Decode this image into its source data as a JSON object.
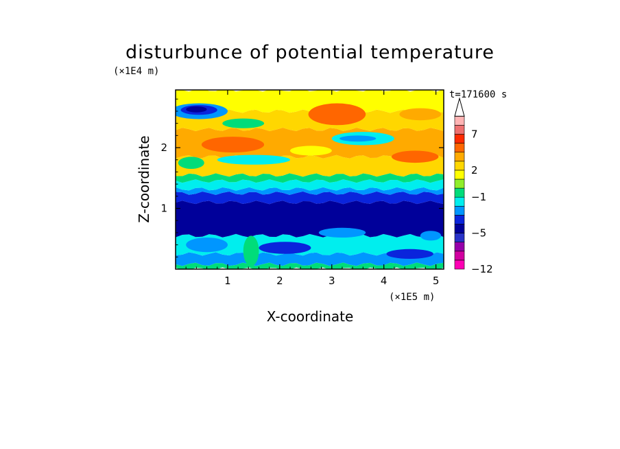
{
  "chart_data": {
    "type": "heatmap",
    "title": "disturbunce of potential temperature",
    "xlabel": "X-coordinate",
    "ylabel": "Z-coordinate",
    "x_unit": "(×1E5 m)",
    "y_unit": "(×1E4 m)",
    "time_label": "t=171600 s",
    "xlim": [
      0,
      5.15
    ],
    "ylim": [
      0,
      2.95
    ],
    "x_ticks": [
      1,
      2,
      3,
      4,
      5
    ],
    "y_ticks": [
      1,
      2
    ],
    "x_tick_labels": [
      "1",
      "2",
      "3",
      "4",
      "5"
    ],
    "y_tick_labels": [
      "1",
      "2"
    ],
    "colorbar": {
      "levels": [
        -12,
        -11,
        -9,
        -7,
        -5,
        -4,
        -3,
        -2,
        -1,
        0,
        1,
        2,
        3,
        4,
        5,
        7,
        9,
        11
      ],
      "colors": [
        "#ff00b4",
        "#d200a0",
        "#9600aa",
        "#2832c8",
        "#00009a",
        "#0a24dc",
        "#0096ff",
        "#00eeee",
        "#00dc7a",
        "#90ee2a",
        "#ffff00",
        "#ffd700",
        "#ffaa00",
        "#ff6600",
        "#ff2a00",
        "#ee7070",
        "#ffb4b4"
      ],
      "extend": "max",
      "tick_values": [
        -12,
        -5,
        -1,
        2,
        7
      ],
      "tick_labels": [
        "−12",
        "−5",
        "−1",
        "2",
        "7"
      ]
    },
    "bands": [
      {
        "z0": 0.0,
        "z1": 0.08,
        "color": "#00dc7a"
      },
      {
        "z0": 0.08,
        "z1": 0.25,
        "color": "#0096ff"
      },
      {
        "z0": 0.25,
        "z1": 0.55,
        "color": "#00eeee"
      },
      {
        "z0": 0.55,
        "z1": 1.1,
        "color": "#00009a"
      },
      {
        "z0": 1.1,
        "z1": 1.25,
        "color": "#0a24dc"
      },
      {
        "z0": 1.25,
        "z1": 1.32,
        "color": "#0096ff"
      },
      {
        "z0": 1.32,
        "z1": 1.45,
        "color": "#00eeee"
      },
      {
        "z0": 1.45,
        "z1": 1.55,
        "color": "#00dc7a"
      },
      {
        "z0": 1.55,
        "z1": 1.85,
        "color": "#ffd700"
      },
      {
        "z0": 1.85,
        "z1": 2.3,
        "color": "#ffaa00"
      },
      {
        "z0": 2.3,
        "z1": 2.6,
        "color": "#ffd700"
      },
      {
        "z0": 2.6,
        "z1": 2.95,
        "color": "#ffff00"
      }
    ],
    "features": [
      {
        "type": "ellipse",
        "x": 0.45,
        "z": 2.6,
        "rx": 0.55,
        "rz": 0.13,
        "color": "#0096ff"
      },
      {
        "type": "ellipse",
        "x": 0.45,
        "z": 2.62,
        "rx": 0.35,
        "rz": 0.08,
        "color": "#0a24dc"
      },
      {
        "type": "ellipse",
        "x": 0.4,
        "z": 2.63,
        "rx": 0.2,
        "rz": 0.05,
        "color": "#00009a"
      },
      {
        "type": "ellipse",
        "x": 1.1,
        "z": 2.05,
        "rx": 0.6,
        "rz": 0.13,
        "color": "#ff6600"
      },
      {
        "type": "ellipse",
        "x": 1.3,
        "z": 2.4,
        "rx": 0.4,
        "rz": 0.08,
        "color": "#00dc7a"
      },
      {
        "type": "ellipse",
        "x": 3.1,
        "z": 2.55,
        "rx": 0.55,
        "rz": 0.18,
        "color": "#ff6600"
      },
      {
        "type": "ellipse",
        "x": 3.6,
        "z": 2.15,
        "rx": 0.6,
        "rz": 0.11,
        "color": "#00eeee"
      },
      {
        "type": "ellipse",
        "x": 3.5,
        "z": 2.15,
        "rx": 0.35,
        "rz": 0.05,
        "color": "#0096ff"
      },
      {
        "type": "ellipse",
        "x": 1.5,
        "z": 1.8,
        "rx": 0.7,
        "rz": 0.08,
        "color": "#00eeee"
      },
      {
        "type": "ellipse",
        "x": 4.7,
        "z": 2.55,
        "rx": 0.4,
        "rz": 0.1,
        "color": "#ffaa00"
      },
      {
        "type": "ellipse",
        "x": 4.6,
        "z": 1.85,
        "rx": 0.45,
        "rz": 0.1,
        "color": "#ff6600"
      },
      {
        "type": "ellipse",
        "x": 2.6,
        "z": 1.95,
        "rx": 0.4,
        "rz": 0.08,
        "color": "#ffff00"
      },
      {
        "type": "ellipse",
        "x": 0.3,
        "z": 1.75,
        "rx": 0.25,
        "rz": 0.1,
        "color": "#00dc7a"
      },
      {
        "type": "ellipse",
        "x": 0.6,
        "z": 0.4,
        "rx": 0.4,
        "rz": 0.12,
        "color": "#0096ff"
      },
      {
        "type": "ellipse",
        "x": 2.1,
        "z": 0.35,
        "rx": 0.5,
        "rz": 0.1,
        "color": "#0a24dc"
      },
      {
        "type": "ellipse",
        "x": 4.5,
        "z": 0.25,
        "rx": 0.45,
        "rz": 0.08,
        "color": "#0a24dc"
      },
      {
        "type": "ellipse",
        "x": 1.45,
        "z": 0.3,
        "rx": 0.15,
        "rz": 0.25,
        "color": "#00dc7a"
      },
      {
        "type": "ellipse",
        "x": 3.2,
        "z": 0.6,
        "rx": 0.45,
        "rz": 0.08,
        "color": "#0096ff"
      },
      {
        "type": "ellipse",
        "x": 4.9,
        "z": 0.55,
        "rx": 0.2,
        "rz": 0.08,
        "color": "#0096ff"
      }
    ]
  }
}
